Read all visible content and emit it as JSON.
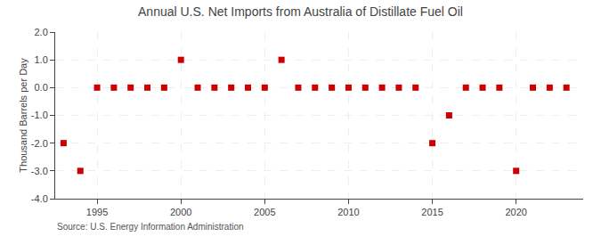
{
  "chart_data": {
    "type": "scatter",
    "title": "Annual U.S. Net Imports from Australia of Distillate Fuel Oil",
    "ylabel": "Thousand Barrels per Day",
    "annotations": [
      "Source: U.S. Energy Information Administration"
    ],
    "x": [
      1993,
      1994,
      1995,
      1996,
      1997,
      1998,
      1999,
      2000,
      2001,
      2002,
      2003,
      2004,
      2005,
      2006,
      2007,
      2008,
      2009,
      2010,
      2011,
      2012,
      2013,
      2014,
      2015,
      2016,
      2017,
      2018,
      2019,
      2020,
      2021,
      2022,
      2023
    ],
    "values": [
      -2,
      -3,
      0,
      0,
      0,
      0,
      0,
      1,
      0,
      0,
      0,
      0,
      0,
      1,
      0,
      0,
      0,
      0,
      0,
      0,
      0,
      0,
      -2,
      -1,
      0,
      0,
      0,
      -3,
      0,
      0,
      0
    ],
    "xlim": [
      1992.5,
      2024
    ],
    "xticks": [
      1995,
      2000,
      2005,
      2010,
      2015,
      2020
    ],
    "ylim": [
      -4.0,
      2.0
    ],
    "yticks": [
      {
        "value": -4.0,
        "label": "-4.0"
      },
      {
        "value": -3.0,
        "label": "-3.0"
      },
      {
        "value": -2.0,
        "label": "-2.0"
      },
      {
        "value": -1.0,
        "label": "-1.0"
      },
      {
        "value": 0.0,
        "label": "0.0"
      },
      {
        "value": 1.0,
        "label": "1.0"
      },
      {
        "value": 2.0,
        "label": "2.0"
      }
    ],
    "color": "#cc0000",
    "marker": "square",
    "grid": true
  }
}
